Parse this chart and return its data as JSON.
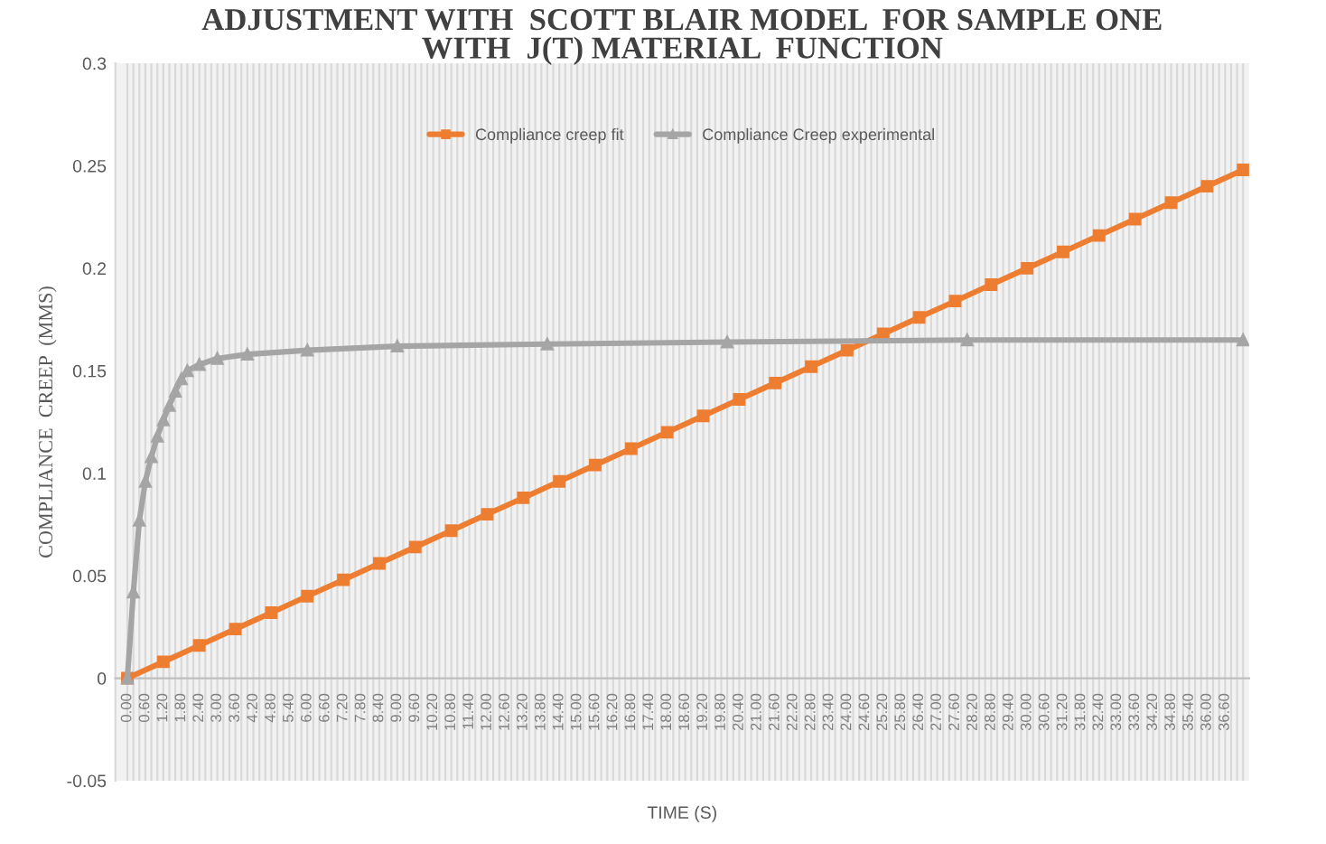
{
  "chart_data": {
    "type": "line",
    "title": "ADJUSTMENT WITH  SCOTT BLAIR MODEL  FOR SAMPLE ONE\nWITH  J(T) MATERIAL  FUNCTION",
    "xlabel": "TIME (S)",
    "ylabel": "COMPLIANCE  CREEP  (MMS)",
    "series": [
      {
        "name": "Compliance creep fit",
        "color": "#ed7d31",
        "marker": "square",
        "x": [
          0,
          1.2,
          2.4,
          3.6,
          4.8,
          6,
          7.2,
          8.4,
          9.6,
          10.8,
          12,
          13.2,
          14.4,
          15.6,
          16.8,
          18,
          19.2,
          20.4,
          21.6,
          22.8,
          24,
          25.2,
          26.4,
          27.6,
          28.8,
          30,
          31.2,
          32.4,
          33.6,
          34.8,
          36,
          37.2
        ],
        "values": [
          0,
          0.008,
          0.016,
          0.024,
          0.032,
          0.04,
          0.048,
          0.056,
          0.064,
          0.072,
          0.08,
          0.088,
          0.096,
          0.104,
          0.112,
          0.12,
          0.128,
          0.136,
          0.144,
          0.152,
          0.16,
          0.168,
          0.176,
          0.184,
          0.192,
          0.2,
          0.208,
          0.216,
          0.224,
          0.232,
          0.24,
          0.248
        ]
      },
      {
        "name": "Compliance Creep experimental",
        "color": "#a5a5a5",
        "marker": "triangle",
        "x": [
          0,
          0.2,
          0.4,
          0.6,
          0.8,
          1.0,
          1.2,
          1.4,
          1.6,
          1.8,
          2.0,
          2.4,
          3.0,
          4.0,
          6.0,
          9.0,
          14.0,
          20.0,
          28.0,
          37.2
        ],
        "values": [
          0,
          0.042,
          0.077,
          0.096,
          0.108,
          0.118,
          0.126,
          0.133,
          0.14,
          0.146,
          0.15,
          0.153,
          0.156,
          0.158,
          0.16,
          0.162,
          0.163,
          0.164,
          0.165,
          0.165
        ]
      }
    ],
    "xlim": [
      -0.4,
      37.4
    ],
    "xticks": [
      {
        "value": 0,
        "label": "0.00"
      },
      {
        "value": 0.2,
        "label": null
      },
      {
        "value": 0.4,
        "label": null
      },
      {
        "value": 0.6,
        "label": "0.60"
      },
      {
        "value": 0.8,
        "label": null
      },
      {
        "value": 1.0,
        "label": null
      },
      {
        "value": 1.2,
        "label": "1.20"
      },
      {
        "value": 1.4,
        "label": null
      },
      {
        "value": 1.6,
        "label": null
      },
      {
        "value": 1.8,
        "label": "1.80"
      },
      {
        "value": 2.0,
        "label": null
      },
      {
        "value": 2.2,
        "label": null
      },
      {
        "value": 2.4,
        "label": "2.40"
      },
      {
        "value": 2.6,
        "label": null
      },
      {
        "value": 2.8,
        "label": null
      },
      {
        "value": 3.0,
        "label": "3.00"
      },
      {
        "value": 3.2,
        "label": null
      },
      {
        "value": 3.4,
        "label": null
      },
      {
        "value": 3.6,
        "label": "3.60"
      },
      {
        "value": 3.8,
        "label": null
      },
      {
        "value": 4.0,
        "label": null
      },
      {
        "value": 4.2,
        "label": "4.20"
      },
      {
        "value": 4.4,
        "label": null
      },
      {
        "value": 4.6,
        "label": null
      },
      {
        "value": 4.8,
        "label": "4.80"
      },
      {
        "value": 5.0,
        "label": null
      },
      {
        "value": 5.2,
        "label": null
      },
      {
        "value": 5.4,
        "label": "5.40"
      },
      {
        "value": 5.6,
        "label": null
      },
      {
        "value": 5.8,
        "label": null
      },
      {
        "value": 6.0,
        "label": "6.00"
      },
      {
        "value": 6.2,
        "label": null
      },
      {
        "value": 6.4,
        "label": null
      },
      {
        "value": 6.6,
        "label": "6.60"
      },
      {
        "value": 6.8,
        "label": null
      },
      {
        "value": 7.0,
        "label": null
      },
      {
        "value": 7.2,
        "label": "7.20"
      },
      {
        "value": 7.4,
        "label": null
      },
      {
        "value": 7.6,
        "label": null
      },
      {
        "value": 7.8,
        "label": "7.80"
      },
      {
        "value": 8.0,
        "label": null
      },
      {
        "value": 8.2,
        "label": null
      },
      {
        "value": 8.4,
        "label": "8.40"
      },
      {
        "value": 8.6,
        "label": null
      },
      {
        "value": 8.8,
        "label": null
      },
      {
        "value": 9.0,
        "label": "9.00"
      },
      {
        "value": 9.2,
        "label": null
      },
      {
        "value": 9.4,
        "label": null
      },
      {
        "value": 9.6,
        "label": "9.60"
      },
      {
        "value": 9.8,
        "label": null
      },
      {
        "value": 10.0,
        "label": null
      },
      {
        "value": 10.2,
        "label": "10.20"
      },
      {
        "value": 10.4,
        "label": null
      },
      {
        "value": 10.6,
        "label": null
      },
      {
        "value": 10.8,
        "label": "10.80"
      },
      {
        "value": 11.0,
        "label": null
      },
      {
        "value": 11.2,
        "label": null
      },
      {
        "value": 11.4,
        "label": "11.40"
      },
      {
        "value": 11.6,
        "label": null
      },
      {
        "value": 11.8,
        "label": null
      },
      {
        "value": 12.0,
        "label": "12.00"
      },
      {
        "value": 12.2,
        "label": null
      },
      {
        "value": 12.4,
        "label": null
      },
      {
        "value": 12.6,
        "label": "12.60"
      },
      {
        "value": 12.8,
        "label": null
      },
      {
        "value": 13.0,
        "label": null
      },
      {
        "value": 13.2,
        "label": "13.20"
      },
      {
        "value": 13.4,
        "label": null
      },
      {
        "value": 13.6,
        "label": null
      },
      {
        "value": 13.8,
        "label": "13.80"
      },
      {
        "value": 14.0,
        "label": null
      },
      {
        "value": 14.2,
        "label": null
      },
      {
        "value": 14.4,
        "label": "14.40"
      },
      {
        "value": 14.6,
        "label": null
      },
      {
        "value": 14.8,
        "label": null
      },
      {
        "value": 15.0,
        "label": "15.00"
      },
      {
        "value": 15.2,
        "label": null
      },
      {
        "value": 15.4,
        "label": null
      },
      {
        "value": 15.6,
        "label": "15.60"
      },
      {
        "value": 15.8,
        "label": null
      },
      {
        "value": 16.0,
        "label": null
      },
      {
        "value": 16.2,
        "label": "16.20"
      },
      {
        "value": 16.4,
        "label": null
      },
      {
        "value": 16.6,
        "label": null
      },
      {
        "value": 16.8,
        "label": "16.80"
      },
      {
        "value": 17.0,
        "label": null
      },
      {
        "value": 17.2,
        "label": null
      },
      {
        "value": 17.4,
        "label": "17.40"
      },
      {
        "value": 17.6,
        "label": null
      },
      {
        "value": 17.8,
        "label": null
      },
      {
        "value": 18.0,
        "label": "18.00"
      },
      {
        "value": 18.2,
        "label": null
      },
      {
        "value": 18.4,
        "label": null
      },
      {
        "value": 18.6,
        "label": "18.60"
      },
      {
        "value": 18.8,
        "label": null
      },
      {
        "value": 19.0,
        "label": null
      },
      {
        "value": 19.2,
        "label": "19.20"
      },
      {
        "value": 19.4,
        "label": null
      },
      {
        "value": 19.6,
        "label": null
      },
      {
        "value": 19.8,
        "label": "19.80"
      },
      {
        "value": 20.0,
        "label": null
      },
      {
        "value": 20.2,
        "label": null
      },
      {
        "value": 20.4,
        "label": "20.40"
      },
      {
        "value": 20.6,
        "label": null
      },
      {
        "value": 20.8,
        "label": null
      },
      {
        "value": 21.0,
        "label": "21.00"
      },
      {
        "value": 21.2,
        "label": null
      },
      {
        "value": 21.4,
        "label": null
      },
      {
        "value": 21.6,
        "label": "21.60"
      },
      {
        "value": 21.8,
        "label": null
      },
      {
        "value": 22.0,
        "label": null
      },
      {
        "value": 22.2,
        "label": "22.20"
      },
      {
        "value": 22.4,
        "label": null
      },
      {
        "value": 22.6,
        "label": null
      },
      {
        "value": 22.8,
        "label": "22.80"
      },
      {
        "value": 23.0,
        "label": null
      },
      {
        "value": 23.2,
        "label": null
      },
      {
        "value": 23.4,
        "label": "23.40"
      },
      {
        "value": 23.6,
        "label": null
      },
      {
        "value": 23.8,
        "label": null
      },
      {
        "value": 24.0,
        "label": "24.00"
      },
      {
        "value": 24.2,
        "label": null
      },
      {
        "value": 24.4,
        "label": null
      },
      {
        "value": 24.6,
        "label": "24.60"
      },
      {
        "value": 24.8,
        "label": null
      },
      {
        "value": 25.0,
        "label": null
      },
      {
        "value": 25.2,
        "label": "25.20"
      },
      {
        "value": 25.4,
        "label": null
      },
      {
        "value": 25.6,
        "label": null
      },
      {
        "value": 25.8,
        "label": "25.80"
      },
      {
        "value": 26.0,
        "label": null
      },
      {
        "value": 26.2,
        "label": null
      },
      {
        "value": 26.4,
        "label": "26.40"
      },
      {
        "value": 26.6,
        "label": null
      },
      {
        "value": 26.8,
        "label": null
      },
      {
        "value": 27.0,
        "label": "27.00"
      },
      {
        "value": 27.2,
        "label": null
      },
      {
        "value": 27.4,
        "label": null
      },
      {
        "value": 27.6,
        "label": "27.60"
      },
      {
        "value": 27.8,
        "label": null
      },
      {
        "value": 28.0,
        "label": null
      },
      {
        "value": 28.2,
        "label": "28.20"
      },
      {
        "value": 28.4,
        "label": null
      },
      {
        "value": 28.6,
        "label": null
      },
      {
        "value": 28.8,
        "label": "28.80"
      },
      {
        "value": 29.0,
        "label": null
      },
      {
        "value": 29.2,
        "label": null
      },
      {
        "value": 29.4,
        "label": "29.40"
      },
      {
        "value": 29.6,
        "label": null
      },
      {
        "value": 29.8,
        "label": null
      },
      {
        "value": 30.0,
        "label": "30.00"
      },
      {
        "value": 30.2,
        "label": null
      },
      {
        "value": 30.4,
        "label": null
      },
      {
        "value": 30.6,
        "label": "30.60"
      },
      {
        "value": 30.8,
        "label": null
      },
      {
        "value": 31.0,
        "label": null
      },
      {
        "value": 31.2,
        "label": "31.20"
      },
      {
        "value": 31.4,
        "label": null
      },
      {
        "value": 31.6,
        "label": null
      },
      {
        "value": 31.8,
        "label": "31.80"
      },
      {
        "value": 32.0,
        "label": null
      },
      {
        "value": 32.2,
        "label": null
      },
      {
        "value": 32.4,
        "label": "32.40"
      },
      {
        "value": 32.6,
        "label": null
      },
      {
        "value": 32.8,
        "label": null
      },
      {
        "value": 33.0,
        "label": "33.00"
      },
      {
        "value": 33.2,
        "label": null
      },
      {
        "value": 33.4,
        "label": null
      },
      {
        "value": 33.6,
        "label": "33.60"
      },
      {
        "value": 33.8,
        "label": null
      },
      {
        "value": 34.0,
        "label": null
      },
      {
        "value": 34.2,
        "label": "34.20"
      },
      {
        "value": 34.4,
        "label": null
      },
      {
        "value": 34.6,
        "label": null
      },
      {
        "value": 34.8,
        "label": "34.80"
      },
      {
        "value": 35.0,
        "label": null
      },
      {
        "value": 35.2,
        "label": null
      },
      {
        "value": 35.4,
        "label": "35.40"
      },
      {
        "value": 35.6,
        "label": null
      },
      {
        "value": 35.8,
        "label": null
      },
      {
        "value": 36.0,
        "label": "36.00"
      },
      {
        "value": 36.2,
        "label": null
      },
      {
        "value": 36.4,
        "label": null
      },
      {
        "value": 36.6,
        "label": "36.60"
      },
      {
        "value": 36.8,
        "label": null
      },
      {
        "value": 37.0,
        "label": null
      },
      {
        "value": 37.2,
        "label": null
      }
    ],
    "ylim": [
      -0.05,
      0.3
    ],
    "yticks": [
      -0.05,
      0,
      0.05,
      0.1,
      0.15,
      0.2,
      0.25,
      0.3
    ],
    "grid": "x",
    "legend": "top",
    "line_style": "solid"
  }
}
